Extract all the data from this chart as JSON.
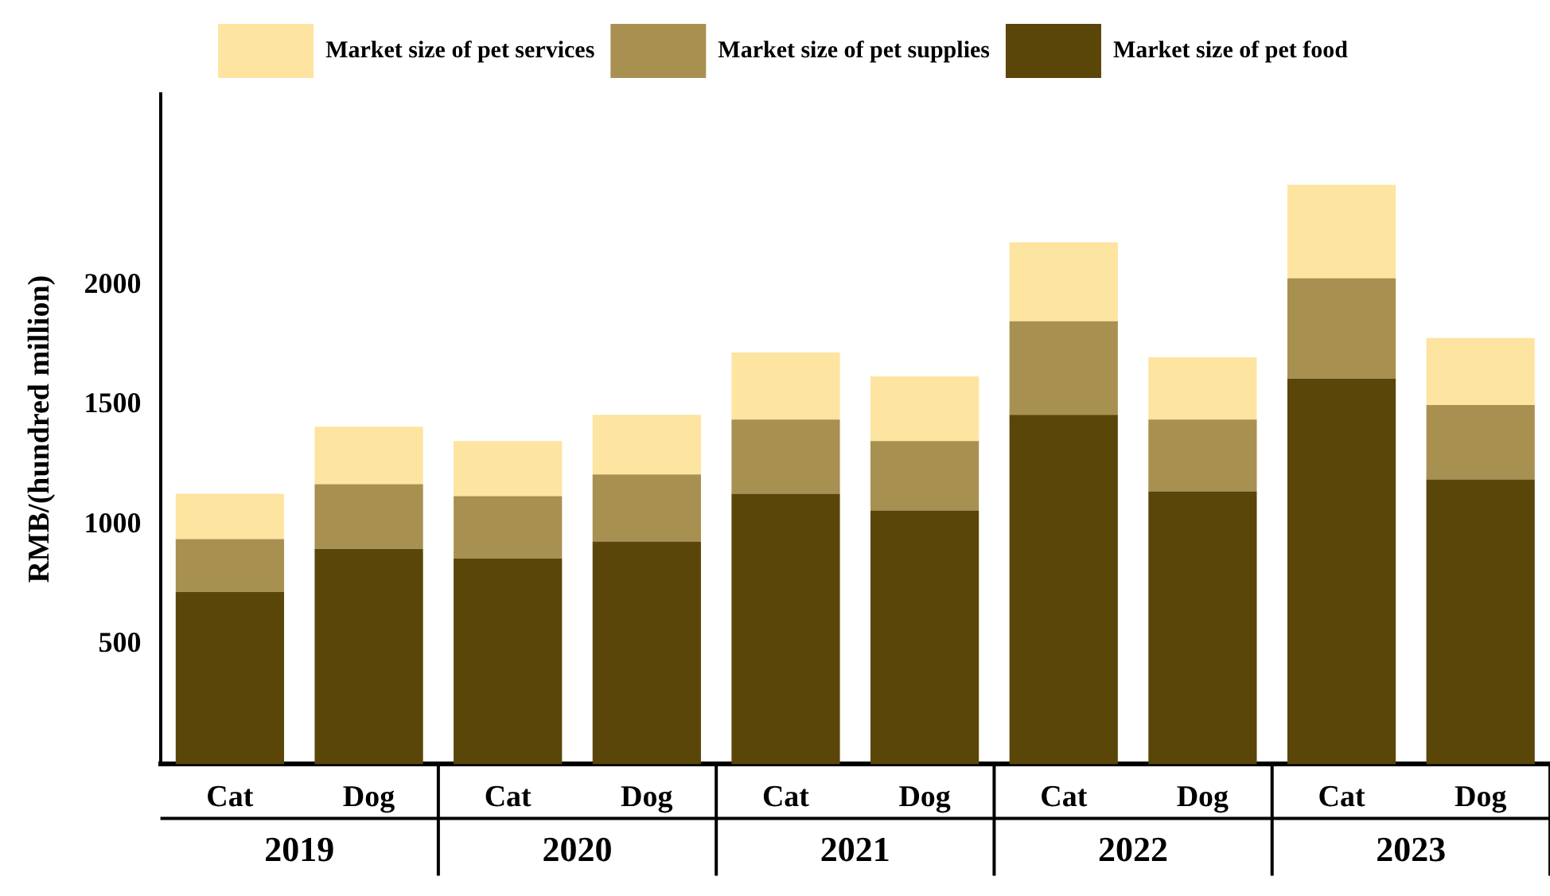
{
  "chart_data": {
    "type": "bar",
    "stacked": true,
    "ylabel": "RMB/(hundred million)",
    "categories": [
      "Cat",
      "Dog",
      "Cat",
      "Dog",
      "Cat",
      "Dog",
      "Cat",
      "Dog",
      "Cat",
      "Dog"
    ],
    "series": [
      {
        "name": "Market size of pet food",
        "color": "#5a4608",
        "values": [
          720,
          900,
          860,
          930,
          1130,
          1060,
          1460,
          1140,
          1610,
          1190
        ]
      },
      {
        "name": "Market size of pet supplies",
        "color": "#a89050",
        "values": [
          220,
          270,
          260,
          280,
          310,
          290,
          390,
          300,
          420,
          310
        ]
      },
      {
        "name": "Market size of pet services",
        "color": "#fde4a0",
        "values": [
          190,
          240,
          230,
          250,
          280,
          270,
          330,
          260,
          390,
          280
        ]
      }
    ],
    "annotations": [
      "2019",
      "2020",
      "2021",
      "2022",
      "2023"
    ],
    "ylim": [
      0,
      2800
    ],
    "yticks": [
      500,
      1000,
      1500,
      2000
    ],
    "grid": false,
    "legend": "top"
  }
}
